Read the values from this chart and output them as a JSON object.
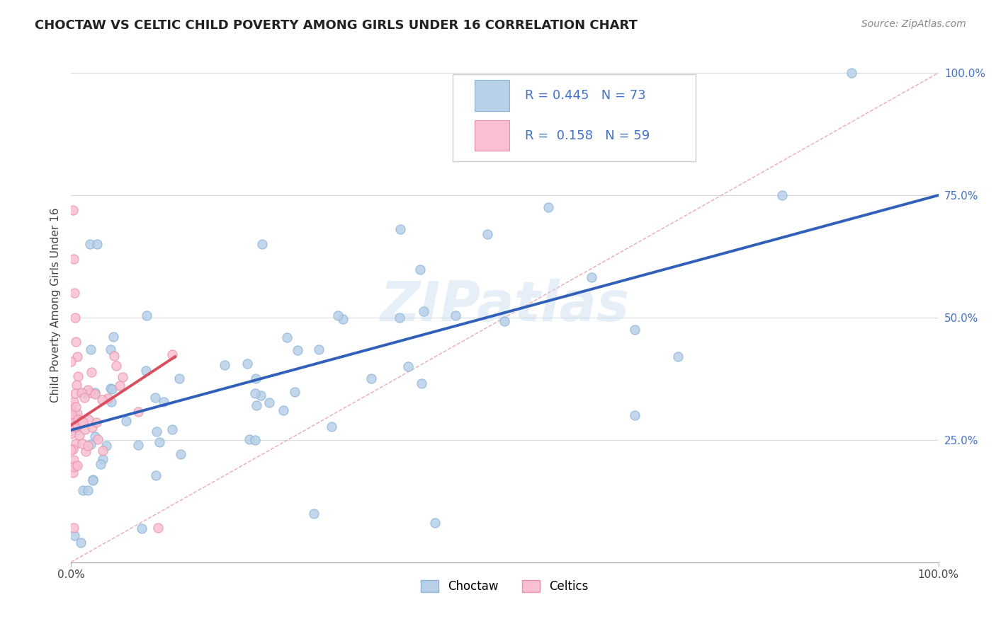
{
  "title": "CHOCTAW VS CELTIC CHILD POVERTY AMONG GIRLS UNDER 16 CORRELATION CHART",
  "source": "Source: ZipAtlas.com",
  "ylabel": "Child Poverty Among Girls Under 16",
  "watermark": "ZIPatlas",
  "choctaw_R": 0.445,
  "choctaw_N": 73,
  "celtic_R": 0.158,
  "celtic_N": 59,
  "choctaw_color": "#b8d0e8",
  "choctaw_edge": "#8ab4d8",
  "celtic_color": "#f8c0d0",
  "celtic_edge": "#e890a8",
  "trend_choctaw_color": "#3060b8",
  "trend_celtic_color": "#d85060",
  "diagonal_color": "#e8a0b0",
  "right_label_color": "#4472c4",
  "legend_border": "#cccccc",
  "grid_color": "#d8dce0",
  "xlim": [
    0.0,
    1.0
  ],
  "ylim": [
    0.0,
    1.05
  ],
  "ytick_values": [
    0.25,
    0.5,
    0.75,
    1.0
  ],
  "title_fontsize": 13,
  "source_fontsize": 10,
  "ylabel_fontsize": 11,
  "choctaw_trend_x0": 0.0,
  "choctaw_trend_y0": 0.27,
  "choctaw_trend_x1": 1.0,
  "choctaw_trend_y1": 0.75,
  "celtic_trend_x0": 0.0,
  "celtic_trend_y0": 0.28,
  "celtic_trend_x1": 0.12,
  "celtic_trend_y1": 0.42
}
